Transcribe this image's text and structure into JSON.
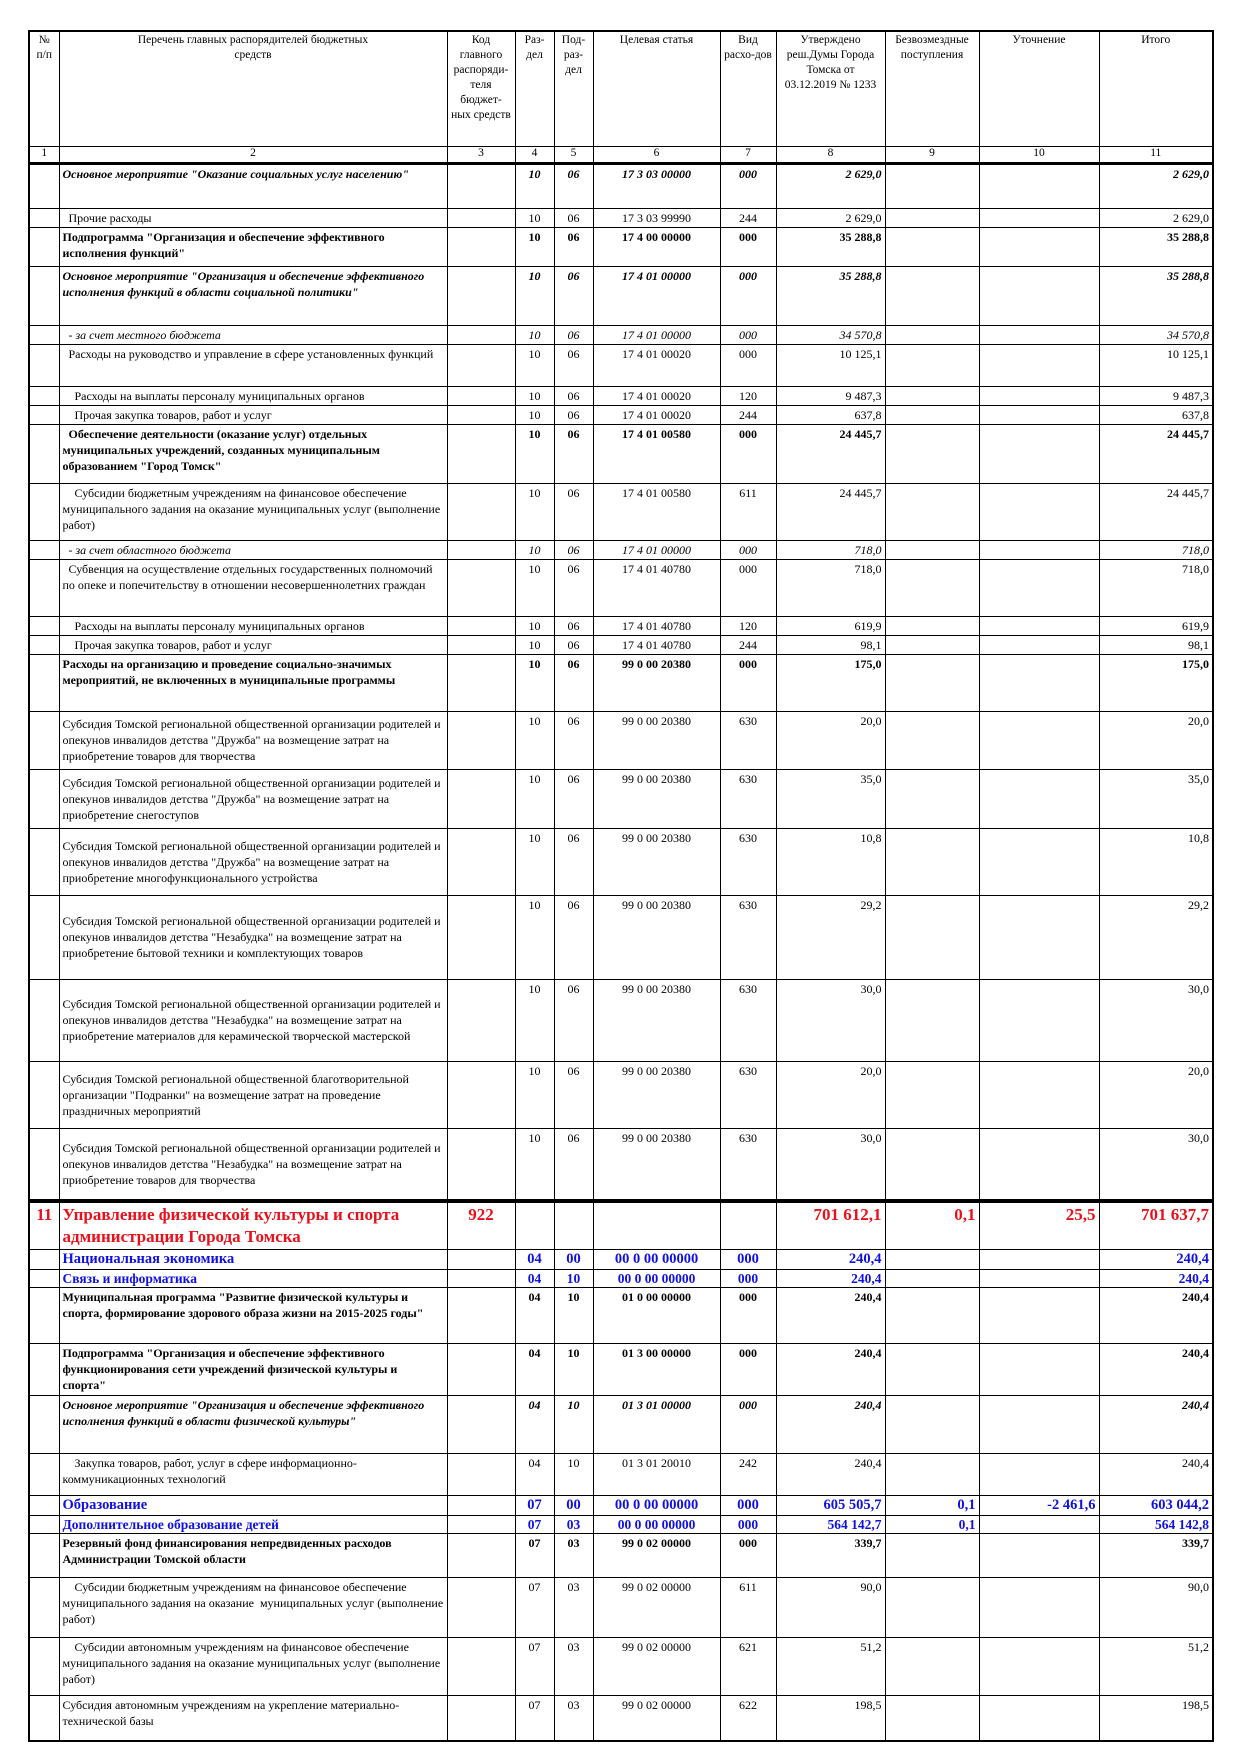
{
  "header": {
    "columns": [
      "№ п/п",
      "Перечень главных распорядителей бюджетных средств",
      "Код главного распоряди-теля бюджет-ных средств",
      "Раз-дел",
      "Под-раз-дел",
      "Целевая статья",
      "Вид расхо-дов",
      "Утверждено реш.Думы Города Томска от 03.12.2019 № 1233",
      "Безвозмездные поступления",
      "Уточнение",
      "Итого"
    ],
    "numbers": [
      "1",
      "2",
      "3",
      "4",
      "5",
      "6",
      "7",
      "8",
      "9",
      "10",
      "11"
    ]
  },
  "rows": [
    {
      "style": "bi",
      "cells": [
        "",
        "Основное мероприятие \"Оказание социальных услуг населению\"",
        "",
        "10",
        "06",
        "17 3 03 00000",
        "000",
        "2 629,0",
        "",
        "",
        "2 629,0"
      ]
    },
    {
      "style": "n",
      "cells": [
        "",
        "  Прочие расходы",
        "",
        "10",
        "06",
        "17 3 03 99990",
        "244",
        "2 629,0",
        "",
        "",
        "2 629,0"
      ]
    },
    {
      "style": "b",
      "cells": [
        "",
        "Подпрограмма \"Организация и обеспечение эффективного исполнения функций\"",
        "",
        "10",
        "06",
        "17 4 00 00000",
        "000",
        "35 288,8",
        "",
        "",
        "35 288,8"
      ]
    },
    {
      "style": "bi",
      "cells": [
        "",
        "Основное мероприятие \"Организация и обеспечение эффективного исполнения функций в области социальной политики\"",
        "",
        "10",
        "06",
        "17 4 01 00000",
        "000",
        "35 288,8",
        "",
        "",
        "35 288,8"
      ]
    },
    {
      "style": "i",
      "cells": [
        "",
        "  - за счет местного бюджета",
        "",
        "10",
        "06",
        "17 4 01 00000",
        "000",
        "34 570,8",
        "",
        "",
        "34 570,8"
      ]
    },
    {
      "style": "n",
      "cells": [
        "",
        "  Расходы на руководство и управление в сфере установленных функций",
        "",
        "10",
        "06",
        "17 4 01 00020",
        "000",
        "10 125,1",
        "",
        "",
        "10 125,1"
      ]
    },
    {
      "style": "n",
      "cells": [
        "",
        "    Расходы на выплаты персоналу муниципальных органов",
        "",
        "10",
        "06",
        "17 4 01 00020",
        "120",
        "9 487,3",
        "",
        "",
        "9 487,3"
      ]
    },
    {
      "style": "n",
      "cells": [
        "",
        "    Прочая закупка товаров, работ и услуг",
        "",
        "10",
        "06",
        "17 4 01 00020",
        "244",
        "637,8",
        "",
        "",
        "637,8"
      ]
    },
    {
      "style": "b",
      "cells": [
        "",
        "  Обеспечение деятельности (оказание услуг) отдельных муниципальных учреждений, созданных муниципальным образованием \"Город Томск\"",
        "",
        "10",
        "06",
        "17 4 01 00580",
        "000",
        "24 445,7",
        "",
        "",
        "24 445,7"
      ]
    },
    {
      "style": "n",
      "cells": [
        "",
        "    Субсидии бюджетным учреждениям на финансовое обеспечение муниципального задания на оказание муниципальных услуг (выполнение работ)",
        "",
        "10",
        "06",
        "17 4 01 00580",
        "611",
        "24 445,7",
        "",
        "",
        "24 445,7"
      ]
    },
    {
      "style": "i",
      "cells": [
        "",
        "  - за счет областного бюджета",
        "",
        "10",
        "06",
        "17 4 01 00000",
        "000",
        "718,0",
        "",
        "",
        "718,0"
      ]
    },
    {
      "style": "n",
      "cells": [
        "",
        "  Субвенция на осуществление отдельных государственных полномочий по опеке и попечительству в отношении несовершеннолетних граждан",
        "",
        "10",
        "06",
        "17 4 01 40780",
        "000",
        "718,0",
        "",
        "",
        "718,0"
      ]
    },
    {
      "style": "n",
      "cells": [
        "",
        "    Расходы на выплаты персоналу муниципальных органов",
        "",
        "10",
        "06",
        "17 4 01 40780",
        "120",
        "619,9",
        "",
        "",
        "619,9"
      ]
    },
    {
      "style": "n",
      "cells": [
        "",
        "    Прочая закупка товаров, работ и услуг",
        "",
        "10",
        "06",
        "17 4 01 40780",
        "244",
        "98,1",
        "",
        "",
        "98,1"
      ]
    },
    {
      "style": "b",
      "cells": [
        "",
        "Расходы на организацию и проведение социально-значимых мероприятий, не включенных в муниципальные программы",
        "",
        "10",
        "06",
        "99 0 00 20380",
        "000",
        "175,0",
        "",
        "",
        "175,0"
      ]
    },
    {
      "style": "mid",
      "cells": [
        "",
        "Субсидия Томской региональной общественной организации родителей и опекунов инвалидов детства \"Дружба\" на возмещение затрат на приобретение товаров для творчества",
        "",
        "10",
        "06",
        "99 0 00 20380",
        "630",
        "20,0",
        "",
        "",
        "20,0"
      ]
    },
    {
      "style": "mid",
      "cells": [
        "",
        "Субсидия Томской региональной общественной организации родителей и опекунов инвалидов детства \"Дружба\" на возмещение затрат на приобретение снегоступов",
        "",
        "10",
        "06",
        "99 0 00 20380",
        "630",
        "35,0",
        "",
        "",
        "35,0"
      ]
    },
    {
      "style": "mid",
      "cells": [
        "",
        "Субсидия Томской региональной общественной организации родителей и опекунов инвалидов детства \"Дружба\" на возмещение затрат на приобретение многофункционального устройства",
        "",
        "10",
        "06",
        "99 0 00 20380",
        "630",
        "10,8",
        "",
        "",
        "10,8"
      ]
    },
    {
      "style": "mid",
      "cells": [
        "",
        "Субсидия Томской региональной общественной организации родителей и опекунов инвалидов детства \"Незабудка\" на возмещение затрат на приобретение бытовой техники и комплектующих товаров",
        "",
        "10",
        "06",
        "99 0 00 20380",
        "630",
        "29,2",
        "",
        "",
        "29,2"
      ]
    },
    {
      "style": "mid",
      "cells": [
        "",
        "Субсидия Томской региональной общественной организации родителей и опекунов инвалидов детства \"Незабудка\" на возмещение затрат на приобретение материалов для керамической творческой мастерской",
        "",
        "10",
        "06",
        "99 0 00 20380",
        "630",
        "30,0",
        "",
        "",
        "30,0"
      ]
    },
    {
      "style": "mid",
      "cells": [
        "",
        "Субсидия Томской региональной общественной благотворительной организации \"Подранки\" на возмещение затрат на проведение праздничных мероприятий",
        "",
        "10",
        "06",
        "99 0 00 20380",
        "630",
        "20,0",
        "",
        "",
        "20,0"
      ]
    },
    {
      "style": "mid",
      "cells": [
        "",
        "Субсидия Томской региональной общественной организации родителей и опекунов инвалидов детства \"Незабудка\" на возмещение затрат на приобретение товаров для творчества",
        "",
        "10",
        "06",
        "99 0 00 20380",
        "630",
        "30,0",
        "",
        "",
        "30,0"
      ]
    },
    {
      "style": "red",
      "cells": [
        "11",
        "Управление физической культуры и спорта администрации Города Томска",
        "922",
        "",
        "",
        "",
        "",
        "701 612,1",
        "0,1",
        "25,5",
        "701 637,7"
      ]
    },
    {
      "style": "blg",
      "cells": [
        "",
        "Национальная экономика",
        "",
        "04",
        "00",
        "00 0 00 00000",
        "000",
        "240,4",
        "",
        "",
        "240,4"
      ]
    },
    {
      "style": "bsm",
      "cells": [
        "",
        "Связь и информатика",
        "",
        "04",
        "10",
        "00 0 00 00000",
        "000",
        "240,4",
        "",
        "",
        "240,4"
      ]
    },
    {
      "style": "b",
      "cells": [
        "",
        "Муниципальная программа \"Развитие физической культуры и спорта, формирование здорового образа жизни на 2015-2025 годы\"",
        "",
        "04",
        "10",
        "01 0 00 00000",
        "000",
        "240,4",
        "",
        "",
        "240,4"
      ]
    },
    {
      "style": "b",
      "cells": [
        "",
        "Подпрограмма \"Организация и обеспечение эффективного функционирования сети учреждений физической культуры и спорта\"",
        "",
        "04",
        "10",
        "01 3 00 00000",
        "000",
        "240,4",
        "",
        "",
        "240,4"
      ]
    },
    {
      "style": "bi",
      "cells": [
        "",
        "Основное мероприятие \"Организация и обеспечение эффективного исполнения функций в области физической культуры\"",
        "",
        "04",
        "10",
        "01 3 01 00000",
        "000",
        "240,4",
        "",
        "",
        "240,4"
      ]
    },
    {
      "style": "n",
      "cells": [
        "",
        "    Закупка товаров, работ, услуг в сфере информационно-коммуникационных технологий",
        "",
        "04",
        "10",
        "01 3 01 20010",
        "242",
        "240,4",
        "",
        "",
        "240,4"
      ]
    },
    {
      "style": "blg",
      "cells": [
        "",
        "Образование",
        "",
        "07",
        "00",
        "00 0 00 00000",
        "000",
        "605 505,7",
        "0,1",
        "-2 461,6",
        "603 044,2"
      ]
    },
    {
      "style": "bsm",
      "cells": [
        "",
        "Дополнительное образование детей",
        "",
        "07",
        "03",
        "00 0 00 00000",
        "000",
        "564 142,7",
        "0,1",
        "",
        "564 142,8"
      ]
    },
    {
      "style": "b",
      "cells": [
        "",
        "Резервный фонд финансирования непредвиденных расходов Администрации Томской области",
        "",
        "07",
        "03",
        "99 0 02 00000",
        "000",
        "339,7",
        "",
        "",
        "339,7"
      ]
    },
    {
      "style": "n",
      "cells": [
        "",
        "    Субсидии бюджетным учреждениям на финансовое обеспечение муниципального задания на оказание  муниципальных услуг (выполнение работ)",
        "",
        "07",
        "03",
        "99 0 02 00000",
        "611",
        "90,0",
        "",
        "",
        "90,0"
      ]
    },
    {
      "style": "n",
      "cells": [
        "",
        "    Субсидии автономным учреждениям на финансовое обеспечение муниципального задания на оказание муниципальных услуг (выполнение работ)",
        "",
        "07",
        "03",
        "99 0 02 00000",
        "621",
        "51,2",
        "",
        "",
        "51,2"
      ]
    },
    {
      "style": "n",
      "cells": [
        "",
        "Субсидия автономным учреждениям на укрепление материально-технической базы",
        "",
        "07",
        "03",
        "99 0 02 00000",
        "622",
        "198,5",
        "",
        "",
        "198,5"
      ]
    }
  ],
  "colors": {
    "department": "#e8101a",
    "section": "#1010e0",
    "text": "#000000"
  }
}
